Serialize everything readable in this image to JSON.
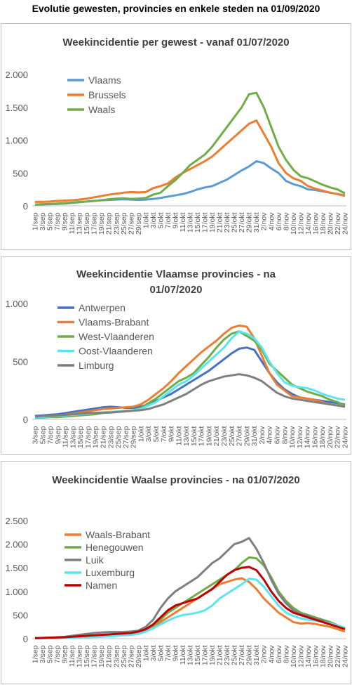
{
  "title": "Evolutie gewesten, provincies en enkele steden na 01/09/2020",
  "chart_data": [
    {
      "type": "line",
      "title": "Weekincidentie  per gewest - vanaf 01/07/2020",
      "categories": [
        "1/sep",
        "3/sep",
        "5/sep",
        "7/sep",
        "9/sep",
        "11/sep",
        "13/sep",
        "15/sep",
        "17/sep",
        "19/sep",
        "21/sep",
        "23/sep",
        "25/sep",
        "27/sep",
        "29/sep",
        "1/okt",
        "3/okt",
        "5/okt",
        "7/okt",
        "9/okt",
        "11/okt",
        "13/okt",
        "15/okt",
        "17/okt",
        "19/okt",
        "21/okt",
        "23/okt",
        "25/okt",
        "27/okt",
        "29/okt",
        "31/okt",
        "2/nov",
        "4/nov",
        "6/nov",
        "8/nov",
        "10/nov",
        "12/nov",
        "14/nov",
        "16/nov",
        "18/nov",
        "20/nov",
        "22/nov",
        "24/nov"
      ],
      "series": [
        {
          "name": "Vlaams",
          "color": "#5b9bd5",
          "values": [
            20,
            22,
            25,
            30,
            35,
            45,
            55,
            65,
            75,
            85,
            90,
            95,
            100,
            95,
            90,
            95,
            105,
            120,
            140,
            160,
            180,
            210,
            250,
            280,
            300,
            350,
            400,
            470,
            540,
            600,
            680,
            650,
            570,
            500,
            380,
            330,
            300,
            250,
            240,
            220,
            200,
            180,
            160
          ]
        },
        {
          "name": "Brussels",
          "color": "#ed7d31",
          "values": [
            60,
            60,
            65,
            75,
            80,
            85,
            95,
            110,
            130,
            150,
            170,
            185,
            200,
            210,
            205,
            210,
            270,
            300,
            340,
            430,
            500,
            560,
            620,
            680,
            750,
            850,
            950,
            1050,
            1150,
            1250,
            1300,
            1100,
            900,
            650,
            500,
            420,
            380,
            300,
            260,
            230,
            200,
            180,
            150
          ]
        },
        {
          "name": "Waals",
          "color": "#70ad47",
          "values": [
            20,
            25,
            30,
            35,
            40,
            50,
            60,
            65,
            75,
            85,
            100,
            110,
            115,
            105,
            110,
            120,
            170,
            200,
            300,
            390,
            500,
            620,
            700,
            780,
            900,
            1050,
            1200,
            1350,
            1500,
            1700,
            1720,
            1500,
            1200,
            900,
            700,
            550,
            450,
            420,
            370,
            320,
            280,
            250,
            190
          ]
        }
      ],
      "ylim": [
        0,
        2000
      ],
      "yticks": [
        0,
        500,
        {
          "value": 1000,
          "label": "1.000"
        },
        {
          "value": 1500,
          "label": "1.500"
        },
        {
          "value": 2000,
          "label": "2.000"
        }
      ],
      "grid": false,
      "legend": "top-left"
    },
    {
      "type": "line",
      "title": "Weekincidentie  Vlaamse provincies - na 01/07/2020",
      "categories": [
        "3/sep",
        "5/sep",
        "7/sep",
        "9/sep",
        "11/sep",
        "13/sep",
        "15/sep",
        "17/sep",
        "19/sep",
        "21/sep",
        "23/sep",
        "25/sep",
        "27/sep",
        "29/sep",
        "1/okt",
        "3/okt",
        "5/okt",
        "7/okt",
        "9/okt",
        "11/okt",
        "13/okt",
        "15/okt",
        "17/okt",
        "19/okt",
        "21/okt",
        "23/okt",
        "25/okt",
        "27/okt",
        "29/okt",
        "31/okt",
        "2/nov",
        "4/nov",
        "6/nov",
        "8/nov",
        "10/nov",
        "12/nov",
        "14/nov",
        "16/nov",
        "18/nov",
        "20/nov",
        "22/nov",
        "24/nov"
      ],
      "series": [
        {
          "name": "Antwerpen",
          "color": "#4472c4",
          "values": [
            30,
            35,
            40,
            45,
            55,
            65,
            75,
            85,
            95,
            105,
            110,
            105,
            100,
            100,
            110,
            130,
            160,
            190,
            220,
            260,
            300,
            340,
            380,
            420,
            470,
            520,
            570,
            610,
            620,
            600,
            500,
            400,
            320,
            260,
            220,
            190,
            180,
            170,
            160,
            150,
            140,
            130
          ]
        },
        {
          "name": "Vlaams-Brabant",
          "color": "#ed7d31",
          "values": [
            20,
            25,
            30,
            35,
            40,
            50,
            60,
            70,
            80,
            90,
            95,
            100,
            105,
            110,
            130,
            170,
            220,
            270,
            330,
            400,
            460,
            520,
            580,
            630,
            680,
            740,
            790,
            810,
            800,
            700,
            550,
            400,
            300,
            250,
            200,
            190,
            180,
            170,
            150,
            130,
            120,
            110
          ]
        },
        {
          "name": "West-Vlaanderen",
          "color": "#70ad47",
          "values": [
            15,
            15,
            20,
            20,
            25,
            30,
            35,
            40,
            45,
            55,
            60,
            65,
            70,
            80,
            100,
            140,
            180,
            230,
            280,
            330,
            360,
            400,
            470,
            540,
            620,
            690,
            740,
            760,
            720,
            680,
            600,
            480,
            420,
            360,
            300,
            270,
            240,
            220,
            200,
            170,
            150,
            120
          ]
        },
        {
          "name": "Oost-Vlaanderen",
          "color": "#5be5f0",
          "values": [
            20,
            20,
            25,
            30,
            35,
            40,
            45,
            50,
            55,
            60,
            65,
            70,
            75,
            80,
            90,
            120,
            150,
            200,
            250,
            300,
            330,
            380,
            440,
            500,
            560,
            620,
            700,
            760,
            740,
            700,
            620,
            500,
            400,
            320,
            290,
            280,
            270,
            250,
            220,
            200,
            180,
            170
          ]
        },
        {
          "name": "Limburg",
          "color": "#7f7f7f",
          "values": [
            25,
            30,
            30,
            35,
            40,
            45,
            50,
            55,
            55,
            60,
            60,
            65,
            70,
            75,
            80,
            90,
            110,
            130,
            160,
            190,
            220,
            260,
            300,
            330,
            350,
            370,
            380,
            390,
            380,
            360,
            330,
            280,
            230,
            200,
            180,
            170,
            160,
            150,
            140,
            130,
            120,
            110
          ]
        }
      ],
      "ylim": [
        0,
        1000
      ],
      "yticks": [
        0,
        500,
        {
          "value": 1000,
          "label": "1.000"
        }
      ],
      "grid": false,
      "legend": "top-left"
    },
    {
      "type": "line",
      "title": "Weekincidentie  Waalse provincies - na 01/07/2020",
      "categories": [
        "1/sep",
        "3/sep",
        "5/sep",
        "7/sep",
        "9/sep",
        "11/sep",
        "13/sep",
        "15/sep",
        "17/sep",
        "19/sep",
        "21/sep",
        "23/sep",
        "25/sep",
        "27/sep",
        "29/sep",
        "1/okt",
        "3/okt",
        "5/okt",
        "7/okt",
        "9/okt",
        "11/okt",
        "13/okt",
        "15/okt",
        "17/okt",
        "19/okt",
        "21/okt",
        "23/okt",
        "25/okt",
        "27/okt",
        "29/okt",
        "31/okt",
        "2/nov",
        "4/nov",
        "6/nov",
        "8/nov",
        "10/nov",
        "12/nov",
        "14/nov",
        "16/nov",
        "18/nov",
        "20/nov",
        "22/nov",
        "24/nov"
      ],
      "series": [
        {
          "name": "Waals-Brabant",
          "color": "#ed7d31",
          "values": [
            10,
            10,
            15,
            20,
            25,
            30,
            40,
            50,
            60,
            70,
            80,
            90,
            100,
            110,
            120,
            160,
            230,
            350,
            450,
            550,
            650,
            750,
            850,
            950,
            1050,
            1150,
            1200,
            1250,
            1280,
            1200,
            1050,
            850,
            700,
            550,
            450,
            350,
            320,
            330,
            310,
            280,
            250,
            200,
            150
          ]
        },
        {
          "name": "Henegouwen",
          "color": "#70ad47",
          "values": [
            10,
            15,
            20,
            25,
            30,
            35,
            45,
            55,
            65,
            75,
            85,
            95,
            110,
            130,
            150,
            200,
            280,
            400,
            550,
            650,
            750,
            850,
            950,
            1050,
            1150,
            1250,
            1350,
            1450,
            1600,
            1720,
            1700,
            1550,
            1300,
            1000,
            800,
            650,
            550,
            500,
            450,
            400,
            350,
            280,
            200
          ]
        },
        {
          "name": "Luik",
          "color": "#7f7f7f",
          "values": [
            10,
            15,
            20,
            30,
            40,
            60,
            80,
            100,
            120,
            130,
            140,
            140,
            140,
            150,
            170,
            250,
            400,
            650,
            850,
            1000,
            1100,
            1200,
            1300,
            1450,
            1600,
            1700,
            1850,
            2000,
            2050,
            2130,
            1900,
            1600,
            1250,
            950,
            750,
            600,
            520,
            480,
            420,
            380,
            320,
            280,
            220
          ]
        },
        {
          "name": "Luxemburg",
          "color": "#5be5f0",
          "values": [
            5,
            5,
            10,
            10,
            15,
            20,
            25,
            30,
            35,
            40,
            50,
            60,
            70,
            80,
            100,
            150,
            220,
            300,
            380,
            450,
            500,
            520,
            550,
            600,
            700,
            850,
            950,
            1050,
            1150,
            1270,
            1250,
            1100,
            900,
            700,
            550,
            480,
            430,
            400,
            380,
            350,
            320,
            280,
            230
          ]
        },
        {
          "name": "Namen",
          "color": "#c00000",
          "values": [
            10,
            15,
            20,
            25,
            30,
            40,
            50,
            60,
            70,
            80,
            90,
            100,
            110,
            120,
            150,
            200,
            300,
            450,
            600,
            700,
            750,
            800,
            850,
            950,
            1050,
            1200,
            1350,
            1450,
            1500,
            1520,
            1450,
            1250,
            1000,
            800,
            650,
            550,
            500,
            450,
            400,
            350,
            300,
            250,
            200
          ]
        }
      ],
      "ylim": [
        0,
        2500
      ],
      "yticks": [
        0,
        500,
        {
          "value": 1000,
          "label": "1.000"
        },
        {
          "value": 1500,
          "label": "1.500"
        },
        {
          "value": 2000,
          "label": "2.000"
        },
        {
          "value": 2500,
          "label": "2.500"
        }
      ],
      "grid": false,
      "legend": "top-left"
    }
  ]
}
